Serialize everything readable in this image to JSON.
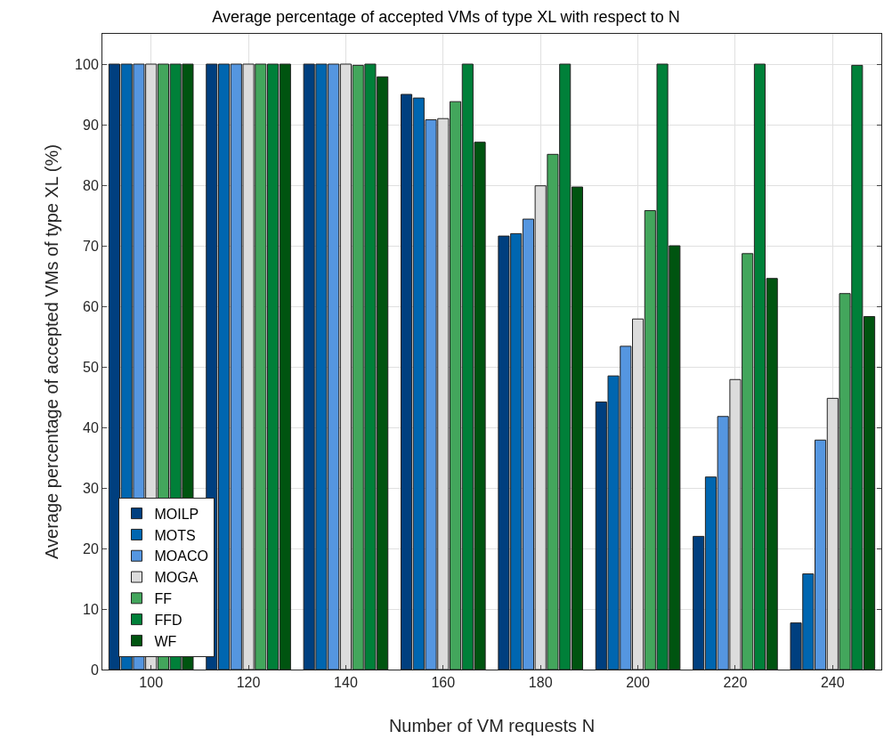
{
  "chart_data": {
    "type": "bar",
    "title": "Average percentage of accepted VMs of type XL with respect to N",
    "xlabel": "Number of VM requests N",
    "ylabel": "Average percentage of accepted VMs of type XL (%)",
    "categories": [
      "100",
      "120",
      "140",
      "160",
      "180",
      "200",
      "220",
      "240"
    ],
    "series": [
      {
        "name": "MOILP",
        "color": "#003f7f",
        "values": [
          100,
          100,
          100,
          95,
          71.6,
          44.2,
          22,
          7.7
        ]
      },
      {
        "name": "MOTS",
        "color": "#0066b0",
        "values": [
          100,
          100,
          100,
          94.4,
          72,
          48.5,
          31.8,
          15.8
        ]
      },
      {
        "name": "MOACO",
        "color": "#5596e0",
        "values": [
          100,
          100,
          100,
          90.8,
          74.4,
          53.4,
          41.8,
          37.9
        ]
      },
      {
        "name": "MOGA",
        "color": "#dcdcdc",
        "values": [
          100,
          100,
          100,
          91,
          79.9,
          57.9,
          47.9,
          44.8
        ]
      },
      {
        "name": "FF",
        "color": "#43a65c",
        "values": [
          100,
          100,
          99.8,
          93.8,
          85.1,
          75.8,
          68.7,
          62.1
        ]
      },
      {
        "name": "FFD",
        "color": "#008039",
        "values": [
          100,
          100,
          100,
          100,
          100,
          100,
          100,
          99.8
        ]
      },
      {
        "name": "WF",
        "color": "#005410",
        "values": [
          100,
          100,
          97.9,
          87.1,
          79.7,
          70,
          64.6,
          58.3
        ]
      }
    ],
    "ylim": [
      0,
      105
    ],
    "yticks": [
      0,
      10,
      20,
      30,
      40,
      50,
      60,
      70,
      80,
      90,
      100
    ],
    "grid": true,
    "legend": "bottom left"
  }
}
